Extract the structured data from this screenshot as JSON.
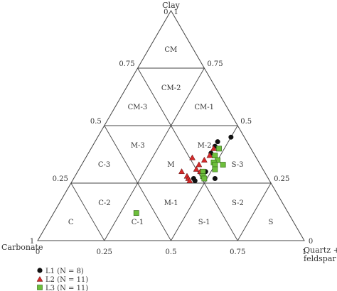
{
  "chart_data": {
    "type": "scatter",
    "subtype": "ternary",
    "axes": {
      "top": "Clay",
      "left": "Carbonate",
      "right": [
        "Quartz +",
        "feldspar"
      ]
    },
    "vertex_ticks": {
      "top_left": "0",
      "top_right": "1",
      "left": "1",
      "right": "0"
    },
    "edge_ticks": {
      "left_edge": [
        "0.25",
        "0.5",
        "0.75"
      ],
      "right_edge": [
        "0.75",
        "0.5",
        "0.25"
      ],
      "base": [
        "0",
        "0.25",
        "0.5",
        "0.75",
        "1"
      ]
    },
    "regions": [
      {
        "label": "CM",
        "clay": 0.833,
        "carbonate": 0.083,
        "qf": 0.083
      },
      {
        "label": "CM-2",
        "clay": 0.667,
        "carbonate": 0.167,
        "qf": 0.167
      },
      {
        "label": "CM-3",
        "clay": 0.583,
        "carbonate": 0.333,
        "qf": 0.083
      },
      {
        "label": "CM-1",
        "clay": 0.583,
        "carbonate": 0.083,
        "qf": 0.333
      },
      {
        "label": "M-3",
        "clay": 0.417,
        "carbonate": 0.417,
        "qf": 0.167
      },
      {
        "label": "M-2",
        "clay": 0.417,
        "carbonate": 0.167,
        "qf": 0.417
      },
      {
        "label": "M",
        "clay": 0.333,
        "carbonate": 0.333,
        "qf": 0.333
      },
      {
        "label": "C-3",
        "clay": 0.333,
        "carbonate": 0.583,
        "qf": 0.083
      },
      {
        "label": "S-3",
        "clay": 0.333,
        "carbonate": 0.083,
        "qf": 0.583
      },
      {
        "label": "C-2",
        "clay": 0.167,
        "carbonate": 0.667,
        "qf": 0.167
      },
      {
        "label": "S-2",
        "clay": 0.167,
        "carbonate": 0.167,
        "qf": 0.667
      },
      {
        "label": "M-1",
        "clay": 0.167,
        "carbonate": 0.417,
        "qf": 0.417
      },
      {
        "label": "C",
        "clay": 0.083,
        "carbonate": 0.833,
        "qf": 0.083
      },
      {
        "label": "C-1",
        "clay": 0.083,
        "carbonate": 0.583,
        "qf": 0.333
      },
      {
        "label": "S-1",
        "clay": 0.083,
        "carbonate": 0.333,
        "qf": 0.583
      },
      {
        "label": "S",
        "clay": 0.083,
        "carbonate": 0.083,
        "qf": 0.833
      }
    ],
    "series": [
      {
        "name": "L1 (N = 8)",
        "marker": "circle",
        "color": "#111111",
        "points": [
          {
            "clay": 0.45,
            "qf": 0.5
          },
          {
            "clay": 0.43,
            "qf": 0.46
          },
          {
            "clay": 0.41,
            "qf": 0.46
          },
          {
            "clay": 0.38,
            "qf": 0.46
          },
          {
            "clay": 0.3,
            "qf": 0.48
          },
          {
            "clay": 0.27,
            "qf": 0.45
          },
          {
            "clay": 0.26,
            "qf": 0.46
          },
          {
            "clay": 0.27,
            "qf": 0.53
          }
        ]
      },
      {
        "name": "L2 (N = 11)",
        "marker": "triangle",
        "color": "#d42a2a",
        "points": [
          {
            "clay": 0.4,
            "qf": 0.46
          },
          {
            "clay": 0.37,
            "qf": 0.46
          },
          {
            "clay": 0.35,
            "qf": 0.45
          },
          {
            "clay": 0.33,
            "qf": 0.44
          },
          {
            "clay": 0.31,
            "qf": 0.44
          },
          {
            "clay": 0.3,
            "qf": 0.46
          },
          {
            "clay": 0.28,
            "qf": 0.42
          },
          {
            "clay": 0.27,
            "qf": 0.43
          },
          {
            "clay": 0.26,
            "qf": 0.44
          },
          {
            "clay": 0.3,
            "qf": 0.39
          },
          {
            "clay": 0.36,
            "qf": 0.4
          }
        ]
      },
      {
        "name": "L3 (N = 11)",
        "marker": "square",
        "color": "#6dbf3b",
        "points": [
          {
            "clay": 0.4,
            "qf": 0.48
          },
          {
            "clay": 0.37,
            "qf": 0.48
          },
          {
            "clay": 0.35,
            "qf": 0.5
          },
          {
            "clay": 0.34,
            "qf": 0.49
          },
          {
            "clay": 0.33,
            "qf": 0.5
          },
          {
            "clay": 0.33,
            "qf": 0.53
          },
          {
            "clay": 0.31,
            "qf": 0.51
          },
          {
            "clay": 0.3,
            "qf": 0.47
          },
          {
            "clay": 0.28,
            "qf": 0.48
          },
          {
            "clay": 0.27,
            "qf": 0.49
          },
          {
            "clay": 0.12,
            "qf": 0.31
          }
        ]
      }
    ],
    "grid": true,
    "legend_position": "bottom-left"
  }
}
